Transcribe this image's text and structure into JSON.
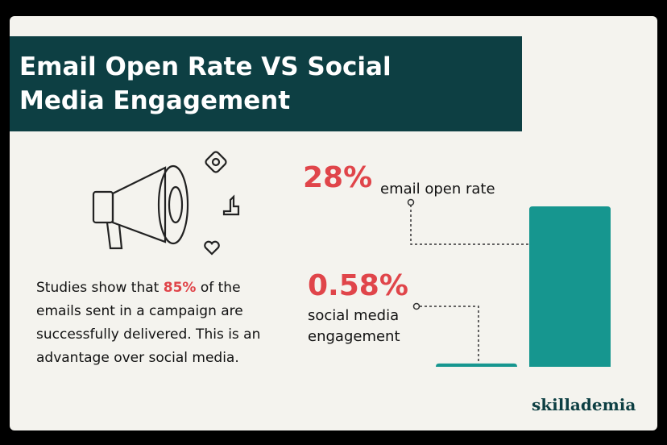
{
  "chart_data": {
    "type": "bar",
    "title": "Email Open Rate VS Social Media Engagement",
    "categories": [
      "email open rate",
      "social media engagement"
    ],
    "values": [
      28,
      0.58
    ],
    "value_labels": [
      "28%",
      "0.58%"
    ],
    "color": "#16968f",
    "label_color": "#e0454a"
  },
  "body": {
    "parts": [
      "Studies show that ",
      "85%",
      " of the emails sent in a campaign are successfully delivered. This is an advantage over social media."
    ]
  },
  "logo": "skillademia"
}
